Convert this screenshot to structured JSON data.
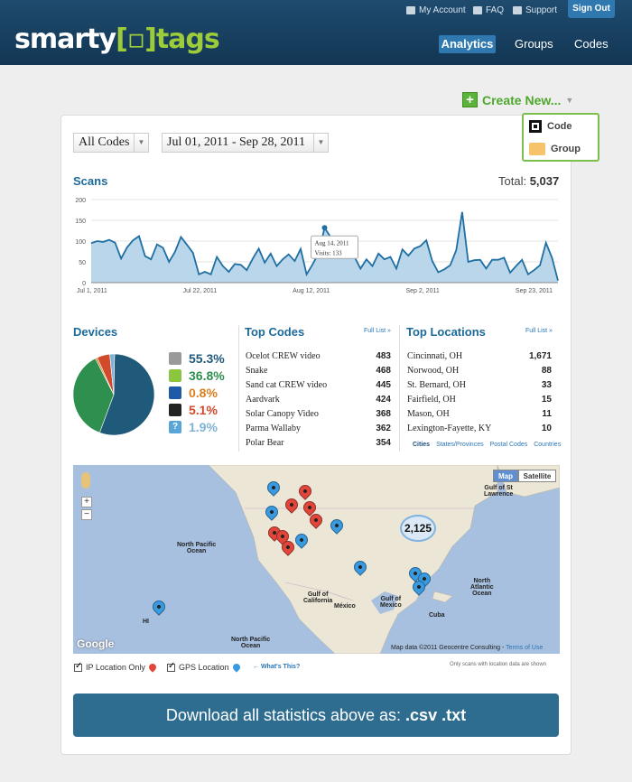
{
  "header": {
    "logo": {
      "a": "smarty",
      "bracket": "[▫]",
      "b": "tags"
    },
    "links": {
      "account": "My Account",
      "faq": "FAQ",
      "support": "Support"
    },
    "signout": "Sign Out",
    "nav": {
      "analytics": "Analytics",
      "groups": "Groups",
      "codes": "Codes"
    }
  },
  "create_new": {
    "label": "Create New...",
    "menu": {
      "code": "Code",
      "group": "Group"
    }
  },
  "filters": {
    "codes": "All Codes",
    "date_range": "Jul 01, 2011 - Sep 28, 2011"
  },
  "scans": {
    "title": "Scans",
    "total_label": "Total:",
    "total_value": "5,037",
    "tooltip": {
      "date": "Aug 14, 2011",
      "visits_label": "Visits:",
      "visits": "133"
    }
  },
  "chart_data": {
    "type": "area",
    "ylim": [
      0,
      200
    ],
    "yticks": [
      "200",
      "150",
      "100",
      "50",
      "0"
    ],
    "xticks": [
      "Jul 1, 2011",
      "Jul 22, 2011",
      "Aug 12, 2011",
      "Sep 2, 2011",
      "Sep 23, 2011"
    ],
    "values": [
      95,
      100,
      98,
      103,
      96,
      58,
      85,
      102,
      112,
      64,
      56,
      92,
      84,
      50,
      74,
      110,
      91,
      72,
      20,
      26,
      20,
      62,
      40,
      26,
      45,
      43,
      30,
      58,
      82,
      48,
      70,
      40,
      56,
      68,
      52,
      81,
      20,
      44,
      71,
      132,
      110,
      95,
      94,
      84,
      62,
      34,
      56,
      40,
      70,
      56,
      62,
      34,
      80,
      65,
      82,
      88,
      102,
      52,
      25,
      32,
      42,
      78,
      170,
      50,
      54,
      55,
      34,
      55,
      55,
      60,
      24,
      40,
      55,
      20,
      30,
      42,
      96,
      60,
      5
    ]
  },
  "devices": {
    "title": "Devices",
    "items": [
      {
        "name": "apple-icon",
        "pct": "55.3%",
        "value": 55.3,
        "color": "#1f5a7a"
      },
      {
        "name": "android-icon",
        "pct": "36.8%",
        "value": 36.8,
        "color": "#2e8f4e"
      },
      {
        "name": "windows-icon",
        "pct": "0.8%",
        "value": 0.8,
        "color": "#d9801e"
      },
      {
        "name": "blackberry-icon",
        "pct": "5.1%",
        "value": 5.1,
        "color": "#d04a2b"
      },
      {
        "name": "unknown-icon",
        "pct": "1.9%",
        "value": 1.9,
        "color": "#7fb3d5"
      }
    ]
  },
  "top_codes": {
    "title": "Top Codes",
    "full_list": "Full List »",
    "rows": [
      {
        "name": "Ocelot CREW video",
        "value": "483"
      },
      {
        "name": "Snake",
        "value": "468"
      },
      {
        "name": "Sand cat CREW video",
        "value": "445"
      },
      {
        "name": "Aardvark",
        "value": "424"
      },
      {
        "name": "Solar Canopy Video",
        "value": "368"
      },
      {
        "name": "Parma Wallaby",
        "value": "362"
      },
      {
        "name": "Polar Bear",
        "value": "354"
      }
    ]
  },
  "top_locations": {
    "title": "Top Locations",
    "full_list": "Full List »",
    "rows": [
      {
        "name": "Cincinnati, OH",
        "value": "1,671"
      },
      {
        "name": "Norwood, OH",
        "value": "88"
      },
      {
        "name": "St. Bernard, OH",
        "value": "33"
      },
      {
        "name": "Fairfield, OH",
        "value": "15"
      },
      {
        "name": "Mason, OH",
        "value": "11"
      },
      {
        "name": "Lexington-Fayette, KY",
        "value": "10"
      }
    ],
    "tabs": [
      "Cities",
      "States/Provinces",
      "Postal Codes",
      "Countries"
    ]
  },
  "map": {
    "map_btn": "Map",
    "satellite_btn": "Satellite",
    "cluster": "2,125",
    "labels": {
      "npo": "North Pacific\nOcean",
      "npo2": "North Pacific\nOcean",
      "gulf_cal": "Gulf of\nCalifornia",
      "mexico": "México",
      "gulf_mex": "Gulf of\nMexico",
      "cuba": "Cuba",
      "nao": "North\nAtlantic\nOcean",
      "hi": "HI",
      "gulf_stl": "Gulf of St\nLawrence"
    },
    "google": "Google",
    "copyright": "Map data ©2011 Geocentre Consulting -",
    "terms": "Terms of Use"
  },
  "legend": {
    "ip": "IP Location Only",
    "gps": "GPS Location",
    "whats_this": "← What's This?",
    "note": "Only scans with location data are shown"
  },
  "download": {
    "text": "Download all statistics above as:",
    "csv": ".csv",
    "txt": ".txt"
  }
}
